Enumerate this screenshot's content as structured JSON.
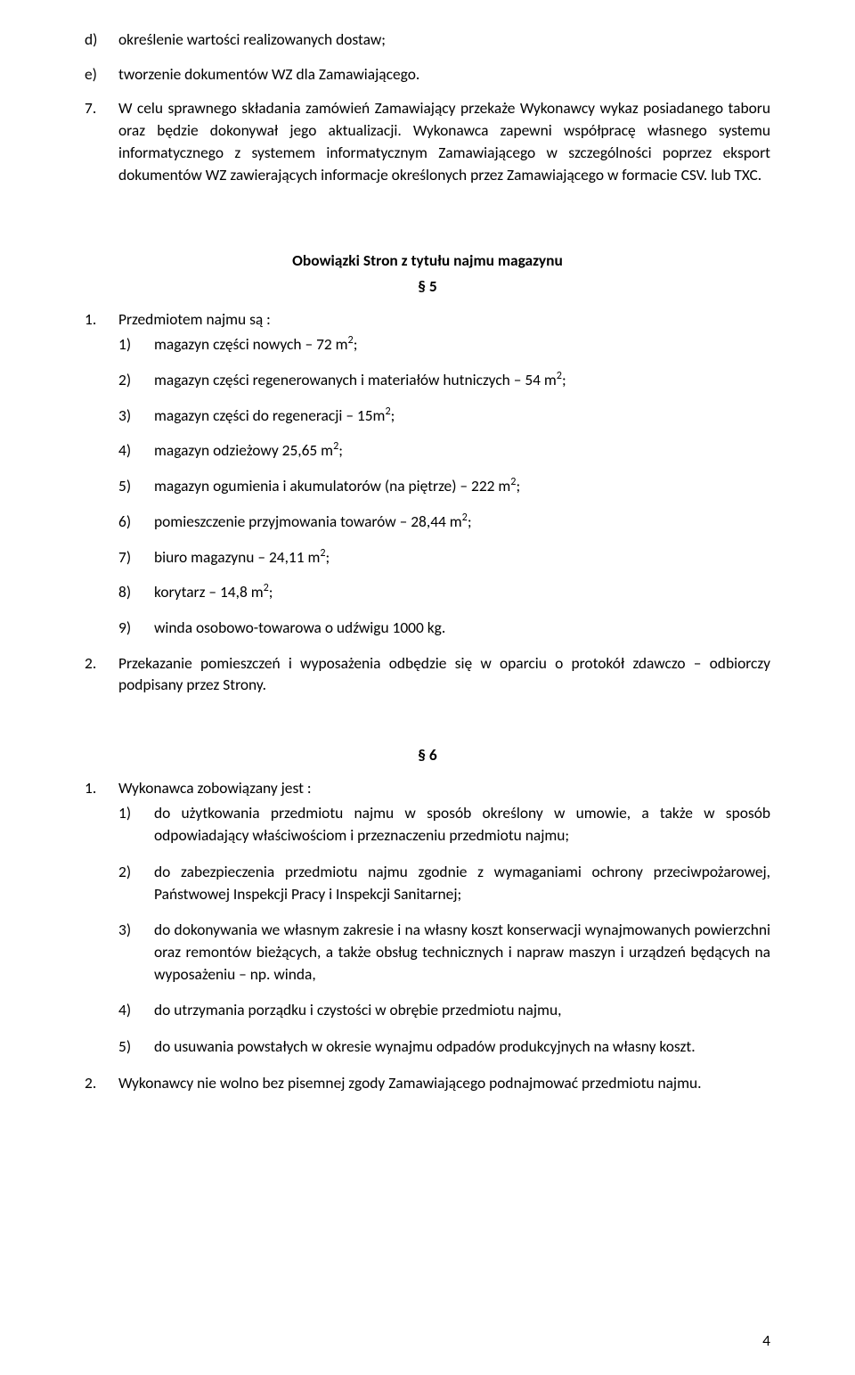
{
  "typography": {
    "font_family": "Calibri",
    "font_size_pt": 11,
    "color": "#000000",
    "background": "#ffffff",
    "line_height": 1.42
  },
  "alpha_d": {
    "marker": "d)",
    "text": "określenie wartości realizowanych dostaw;"
  },
  "alpha_e": {
    "marker": "e)",
    "text": "tworzenie dokumentów WZ dla Zamawiającego."
  },
  "para7": {
    "marker": "7.",
    "text": "W celu sprawnego składania zamówień Zamawiający przekaże Wykonawcy wykaz posiadanego taboru oraz będzie dokonywał jego aktualizacji. Wykonawca zapewni współpracę własnego systemu informatycznego z systemem informatycznym Zamawiającego w szczególności poprzez eksport dokumentów WZ zawierających informacje określonych przez Zamawiającego w formacie CSV. lub TXC."
  },
  "section5": {
    "title": "Obowiązki  Stron z tytułu najmu magazynu",
    "num": "§ 5",
    "p1": {
      "marker": "1.",
      "text": "Przedmiotem najmu są :"
    },
    "items": {
      "i1": {
        "marker": "1)",
        "text": "magazyn części nowych – 72 m²;"
      },
      "i2": {
        "marker": "2)",
        "text": "magazyn części regenerowanych i materiałów hutniczych – 54 m²;"
      },
      "i3": {
        "marker": "3)",
        "text": "magazyn części do regeneracji – 15m²;"
      },
      "i4": {
        "marker": "4)",
        "text": "magazyn odzieżowy 25,65 m²;"
      },
      "i5": {
        "marker": "5)",
        "text": "magazyn ogumienia i akumulatorów (na piętrze) – 222 m²;"
      },
      "i6": {
        "marker": "6)",
        "text": "pomieszczenie przyjmowania towarów – 28,44 m²;"
      },
      "i7": {
        "marker": "7)",
        "text": "biuro magazynu – 24,11 m²;"
      },
      "i8": {
        "marker": "8)",
        "text": "korytarz – 14,8 m²;"
      },
      "i9": {
        "marker": "9)",
        "text": "winda osobowo-towarowa o udźwigu 1000 kg."
      }
    },
    "p2": {
      "marker": "2.",
      "text": "Przekazanie pomieszczeń i wyposażenia odbędzie się w oparciu o protokół zdawczo – odbiorczy podpisany przez Strony."
    }
  },
  "section6": {
    "num": "§ 6",
    "p1": {
      "marker": "1.",
      "text": "Wykonawca zobowiązany jest  :"
    },
    "items": {
      "i1": {
        "marker": "1)",
        "text": "do użytkowania przedmiotu najmu w sposób określony w umowie, a także w sposób odpowiadający właściwościom i przeznaczeniu przedmiotu najmu;"
      },
      "i2": {
        "marker": "2)",
        "text": "do zabezpieczenia przedmiotu najmu zgodnie z wymaganiami ochrony przeciwpożarowej, Państwowej Inspekcji Pracy  i Inspekcji Sanitarnej;"
      },
      "i3": {
        "marker": "3)",
        "text": "do dokonywania we własnym zakresie i na własny koszt konserwacji wynajmowanych powierzchni oraz remontów bieżących, a także obsług technicznych i napraw maszyn i urządzeń będących na wyposażeniu – np. winda,"
      },
      "i4": {
        "marker": "4)",
        "text": "do utrzymania porządku i czystości w obrębie przedmiotu najmu,"
      },
      "i5": {
        "marker": "5)",
        "text": "do usuwania powstałych w okresie wynajmu odpadów produkcyjnych na własny koszt."
      }
    },
    "p2": {
      "marker": "2.",
      "text": "Wykonawcy nie wolno bez pisemnej zgody Zamawiającego podnajmować przedmiotu najmu."
    }
  },
  "page_number": "4"
}
